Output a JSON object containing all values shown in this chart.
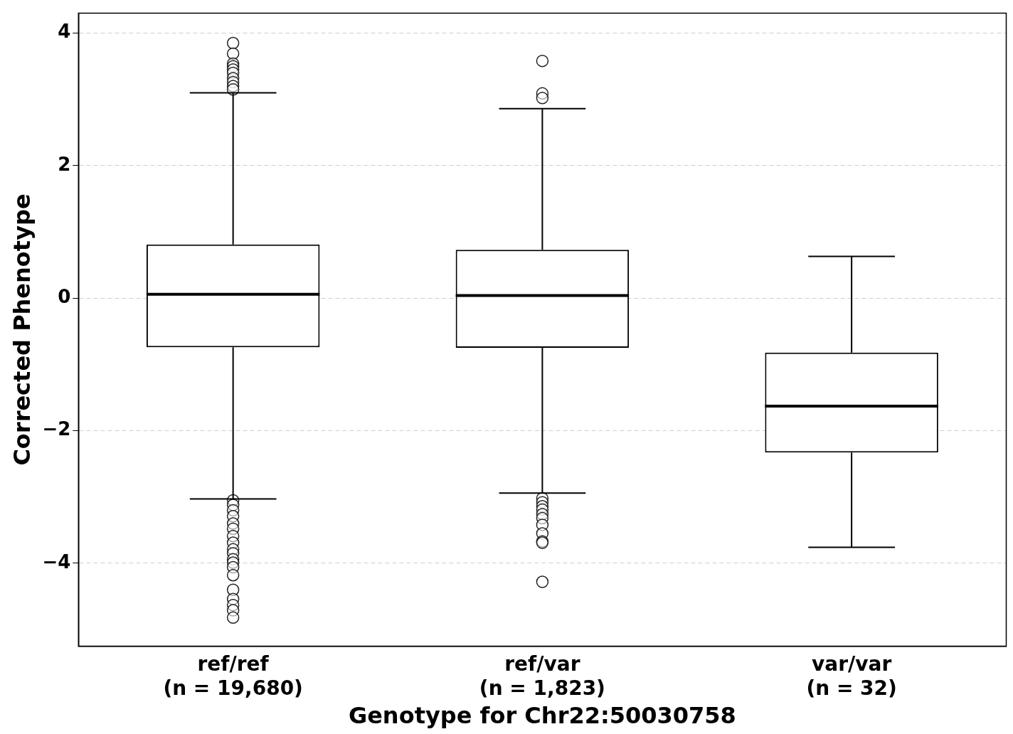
{
  "chart_data": {
    "type": "box",
    "xlabel": "Genotype for Chr22:50030758",
    "ylabel": "Corrected Phenotype",
    "categories": [
      "ref/ref\n(n = 19,680)",
      "ref/var\n(n = 1,823)",
      "var/var\n(n = 32)"
    ],
    "boxes": [
      {
        "low": -3.03,
        "q1": -0.74,
        "median": 0.06,
        "q3": 0.81,
        "high": 3.1,
        "outliers": [
          3.85,
          3.69,
          3.54,
          3.5,
          3.45,
          3.4,
          3.32,
          3.26,
          3.2,
          3.15,
          -3.05,
          -3.12,
          -3.2,
          -3.29,
          -3.4,
          -3.48,
          -3.59,
          -3.69,
          -3.79,
          -3.85,
          -3.94,
          -3.99,
          -4.06,
          -4.18,
          -4.4,
          -4.54,
          -4.63,
          -4.71,
          -4.82
        ]
      },
      {
        "low": -2.94,
        "q1": -0.75,
        "median": 0.04,
        "q3": 0.73,
        "high": 2.86,
        "outliers": [
          3.58,
          3.09,
          3.02,
          -3.02,
          -3.08,
          -3.14,
          -3.19,
          -3.26,
          -3.32,
          -3.42,
          -3.55,
          -3.67,
          -3.69,
          -4.28
        ]
      },
      {
        "low": -3.76,
        "q1": -2.33,
        "median": -1.63,
        "q3": -0.82,
        "high": 0.63
      }
    ],
    "color": "#000000",
    "ylim": [
      -5.25,
      4.3
    ],
    "yticks": [
      {
        "value": -4,
        "label": "−4"
      },
      {
        "value": -2,
        "label": "−2"
      },
      0,
      2,
      4
    ],
    "grid": "y",
    "legend": false
  }
}
